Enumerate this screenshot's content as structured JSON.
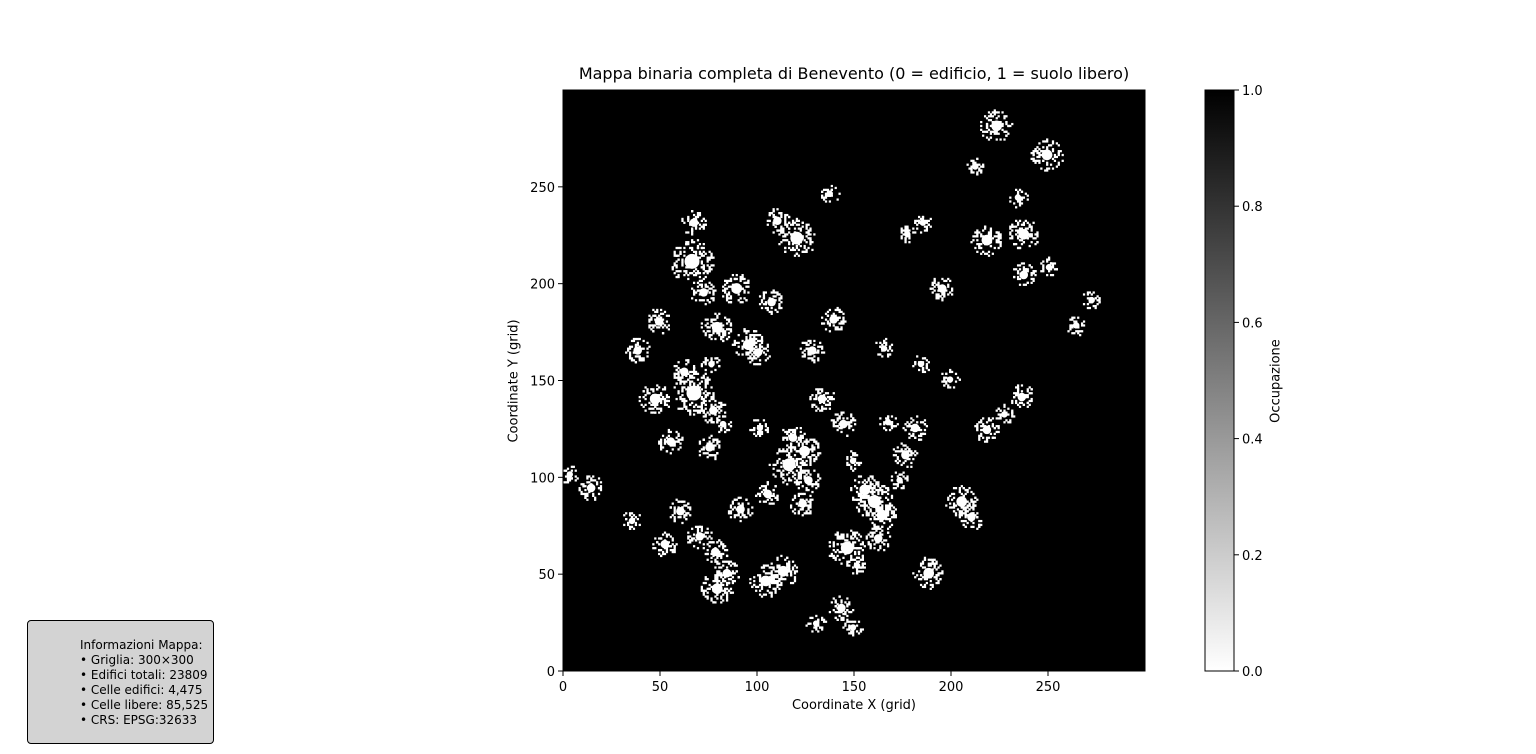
{
  "chart_data": {
    "type": "heatmap",
    "title": "Mappa binaria completa di Benevento (0 = edificio, 1 = suolo libero)",
    "xlabel": "Coordinate X (grid)",
    "ylabel": "Coordinate Y (grid)",
    "xlim": [
      0,
      300
    ],
    "ylim": [
      0,
      300
    ],
    "x_ticks": [
      0,
      50,
      100,
      150,
      200,
      250
    ],
    "y_ticks": [
      0,
      50,
      100,
      150,
      200,
      250
    ],
    "grid": false,
    "colormap": "gray_r",
    "background_value": 1,
    "background_color": "#000000",
    "building_value": 0,
    "building_color": "#ffffff",
    "building_clusters": [
      {
        "x": 3,
        "y": 101,
        "r": 3
      },
      {
        "x": 14,
        "y": 94,
        "r": 4
      },
      {
        "x": 35,
        "y": 77,
        "r": 3
      },
      {
        "x": 38,
        "y": 165,
        "r": 4
      },
      {
        "x": 47,
        "y": 140,
        "r": 5
      },
      {
        "x": 49,
        "y": 180,
        "r": 4
      },
      {
        "x": 52,
        "y": 65,
        "r": 4
      },
      {
        "x": 55,
        "y": 118,
        "r": 4
      },
      {
        "x": 60,
        "y": 82,
        "r": 4
      },
      {
        "x": 62,
        "y": 154,
        "r": 4
      },
      {
        "x": 66,
        "y": 211,
        "r": 7
      },
      {
        "x": 67,
        "y": 143,
        "r": 7
      },
      {
        "x": 67,
        "y": 231,
        "r": 4
      },
      {
        "x": 70,
        "y": 69,
        "r": 4
      },
      {
        "x": 72,
        "y": 195,
        "r": 4
      },
      {
        "x": 75,
        "y": 115,
        "r": 4
      },
      {
        "x": 76,
        "y": 158,
        "r": 3
      },
      {
        "x": 77,
        "y": 134,
        "r": 4
      },
      {
        "x": 78,
        "y": 61,
        "r": 4
      },
      {
        "x": 79,
        "y": 42,
        "r": 5
      },
      {
        "x": 79,
        "y": 177,
        "r": 5
      },
      {
        "x": 82,
        "y": 127,
        "r": 3
      },
      {
        "x": 84,
        "y": 50,
        "r": 4
      },
      {
        "x": 89,
        "y": 197,
        "r": 5
      },
      {
        "x": 91,
        "y": 83,
        "r": 4
      },
      {
        "x": 95,
        "y": 168,
        "r": 5
      },
      {
        "x": 100,
        "y": 164,
        "r": 4
      },
      {
        "x": 101,
        "y": 125,
        "r": 3
      },
      {
        "x": 104,
        "y": 46,
        "r": 5
      },
      {
        "x": 105,
        "y": 91,
        "r": 4
      },
      {
        "x": 107,
        "y": 190,
        "r": 4
      },
      {
        "x": 110,
        "y": 232,
        "r": 4
      },
      {
        "x": 113,
        "y": 51,
        "r": 5
      },
      {
        "x": 116,
        "y": 106,
        "r": 6
      },
      {
        "x": 118,
        "y": 120,
        "r": 4
      },
      {
        "x": 120,
        "y": 223,
        "r": 6
      },
      {
        "x": 123,
        "y": 86,
        "r": 4
      },
      {
        "x": 124,
        "y": 113,
        "r": 5
      },
      {
        "x": 126,
        "y": 98,
        "r": 4
      },
      {
        "x": 128,
        "y": 165,
        "r": 4
      },
      {
        "x": 130,
        "y": 24,
        "r": 3
      },
      {
        "x": 133,
        "y": 140,
        "r": 4
      },
      {
        "x": 137,
        "y": 246,
        "r": 3
      },
      {
        "x": 139,
        "y": 181,
        "r": 4
      },
      {
        "x": 143,
        "y": 32,
        "r": 4
      },
      {
        "x": 144,
        "y": 127,
        "r": 4
      },
      {
        "x": 146,
        "y": 63,
        "r": 6
      },
      {
        "x": 149,
        "y": 108,
        "r": 3
      },
      {
        "x": 149,
        "y": 22,
        "r": 3
      },
      {
        "x": 151,
        "y": 54,
        "r": 3
      },
      {
        "x": 155,
        "y": 93,
        "r": 5
      },
      {
        "x": 160,
        "y": 87,
        "r": 6
      },
      {
        "x": 162,
        "y": 68,
        "r": 4
      },
      {
        "x": 164,
        "y": 80,
        "r": 5
      },
      {
        "x": 165,
        "y": 166,
        "r": 3
      },
      {
        "x": 167,
        "y": 128,
        "r": 3
      },
      {
        "x": 173,
        "y": 98,
        "r": 3
      },
      {
        "x": 176,
        "y": 111,
        "r": 4
      },
      {
        "x": 177,
        "y": 225,
        "r": 3
      },
      {
        "x": 181,
        "y": 125,
        "r": 4
      },
      {
        "x": 184,
        "y": 158,
        "r": 3
      },
      {
        "x": 185,
        "y": 231,
        "r": 3
      },
      {
        "x": 188,
        "y": 50,
        "r": 5
      },
      {
        "x": 195,
        "y": 197,
        "r": 4
      },
      {
        "x": 199,
        "y": 150,
        "r": 3
      },
      {
        "x": 205,
        "y": 87,
        "r": 5
      },
      {
        "x": 210,
        "y": 79,
        "r": 4
      },
      {
        "x": 212,
        "y": 260,
        "r": 3
      },
      {
        "x": 218,
        "y": 222,
        "r": 5
      },
      {
        "x": 218,
        "y": 124,
        "r": 4
      },
      {
        "x": 223,
        "y": 281,
        "r": 5
      },
      {
        "x": 227,
        "y": 132,
        "r": 3
      },
      {
        "x": 234,
        "y": 244,
        "r": 3
      },
      {
        "x": 236,
        "y": 141,
        "r": 4
      },
      {
        "x": 237,
        "y": 204,
        "r": 4
      },
      {
        "x": 237,
        "y": 225,
        "r": 5
      },
      {
        "x": 249,
        "y": 266,
        "r": 5
      },
      {
        "x": 250,
        "y": 208,
        "r": 3
      },
      {
        "x": 264,
        "y": 178,
        "r": 3
      },
      {
        "x": 272,
        "y": 191,
        "r": 3
      }
    ],
    "colorbar": {
      "label": "Occupazione",
      "ticks": [
        "1.0",
        "0.8",
        "0.6",
        "0.4",
        "0.2",
        "0.0"
      ]
    }
  },
  "info_box": {
    "lines": [
      "Informazioni Mappa:",
      "• Griglia: 300×300",
      "• Edifici totali: 23809",
      "• Celle edifici: 4,475",
      "• Celle libere: 85,525",
      "• CRS: EPSG:32633"
    ]
  }
}
